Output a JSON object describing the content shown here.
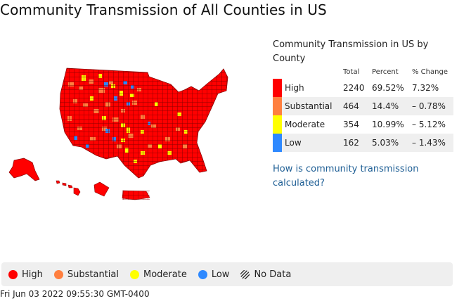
{
  "page": {
    "title": "Community Transmission of All Counties in US",
    "timestamp": "Fri Jun 03 2022 09:55:30 GMT-0400"
  },
  "summary": {
    "title": "Community Transmission in US by County",
    "columns": [
      "Total",
      "Percent",
      "% Change"
    ],
    "rows": [
      {
        "level": "High",
        "total": "2240",
        "percent": "69.52%",
        "change": "7.32%",
        "color": "#ff0000"
      },
      {
        "level": "Substantial",
        "total": "464",
        "percent": "14.4%",
        "change": "– 0.78%",
        "color": "#ff7f3f"
      },
      {
        "level": "Moderate",
        "total": "354",
        "percent": "10.99%",
        "change": "– 5.12%",
        "color": "#ffff00"
      },
      {
        "level": "Low",
        "total": "162",
        "percent": "5.03%",
        "change": "– 1.43%",
        "color": "#2e89ff"
      }
    ],
    "link": "How is community transmission calculated?"
  },
  "legend": {
    "items": [
      {
        "label": "High",
        "color": "#ff0000"
      },
      {
        "label": "Substantial",
        "color": "#ff7f3f"
      },
      {
        "label": "Moderate",
        "color": "#ffff00"
      },
      {
        "label": "Low",
        "color": "#2e89ff"
      },
      {
        "label": "No Data",
        "icon": "hatched-circle-icon"
      }
    ]
  },
  "map": {
    "region": "United States",
    "base_color": "#ff0000",
    "border_color": "#8b0000"
  }
}
